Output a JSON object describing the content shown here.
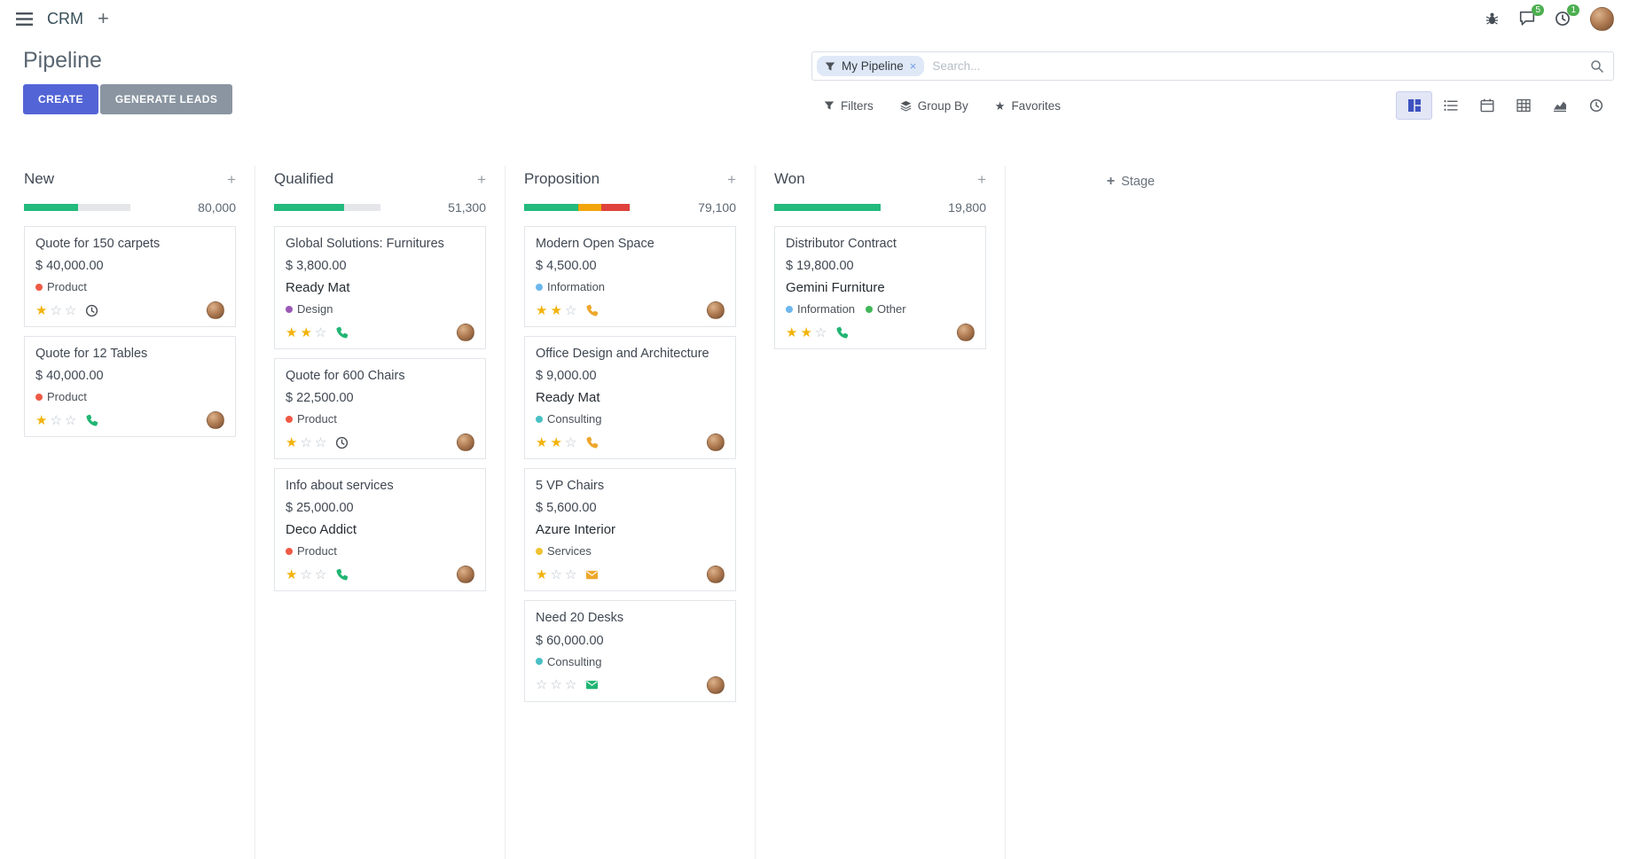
{
  "icons": {
    "plus": "+",
    "close": "×",
    "star": "★",
    "star_outline": "☆"
  },
  "colors": {
    "primary_button": "#5365d6",
    "secondary_button": "#8a95a1",
    "navbar_badge": "#4caf50",
    "star_filled": "#f2b30a",
    "star_empty": "#b9c2ca",
    "facet_background": "#dfe8f7",
    "progress_success": "#23ba7d",
    "progress_warning": "#f2a50c",
    "progress_danger": "#df423c",
    "progress_muted": "#e4e6e9"
  },
  "navbar": {
    "app_name": "CRM",
    "messages_badge": "5",
    "activities_badge": "1"
  },
  "control_panel": {
    "title": "Pipeline",
    "create_label": "CREATE",
    "generate_leads_label": "GENERATE LEADS",
    "search": {
      "facet_label": "My Pipeline",
      "placeholder": "Search..."
    },
    "filters_label": "Filters",
    "group_by_label": "Group By",
    "favorites_label": "Favorites"
  },
  "view_switcher": {
    "items": [
      {
        "icon": "kanban-icon",
        "active": true
      },
      {
        "icon": "list-icon",
        "active": false
      },
      {
        "icon": "calendar-icon",
        "active": false
      },
      {
        "icon": "pivot-icon",
        "active": false
      },
      {
        "icon": "graph-icon",
        "active": false
      },
      {
        "icon": "activity-icon",
        "active": false
      }
    ]
  },
  "board": {
    "add_stage_label": "Stage",
    "columns": [
      {
        "name": "New",
        "counter": "80,000",
        "progress": [
          {
            "color": "#23ba7d",
            "pct": 51
          },
          {
            "color": "#e4e6e9",
            "pct": 49
          }
        ],
        "cards": [
          {
            "title": "Quote for 150 carpets",
            "amount": "$ 40,000.00",
            "partner": "",
            "tags": [
              {
                "label": "Product",
                "color": "#ef5a46"
              }
            ],
            "stars": 1,
            "activity": {
              "type": "clock",
              "color": "#4a5056"
            }
          },
          {
            "title": "Quote for 12 Tables",
            "amount": "$ 40,000.00",
            "partner": "",
            "tags": [
              {
                "label": "Product",
                "color": "#ef5a46"
              }
            ],
            "stars": 1,
            "activity": {
              "type": "phone",
              "color": "#21b573"
            }
          }
        ]
      },
      {
        "name": "Qualified",
        "counter": "51,300",
        "progress": [
          {
            "color": "#23ba7d",
            "pct": 66
          },
          {
            "color": "#e4e6e9",
            "pct": 34
          }
        ],
        "cards": [
          {
            "title": "Global Solutions: Furnitures",
            "amount": "$ 3,800.00",
            "partner": "Ready Mat",
            "tags": [
              {
                "label": "Design",
                "color": "#9b59b6"
              }
            ],
            "stars": 2,
            "activity": {
              "type": "phone",
              "color": "#21b573"
            }
          },
          {
            "title": "Quote for 600 Chairs",
            "amount": "$ 22,500.00",
            "partner": "",
            "tags": [
              {
                "label": "Product",
                "color": "#ef5a46"
              }
            ],
            "stars": 1,
            "activity": {
              "type": "clock",
              "color": "#4a5056"
            }
          },
          {
            "title": "Info about services",
            "amount": "$ 25,000.00",
            "partner": "Deco Addict",
            "tags": [
              {
                "label": "Product",
                "color": "#ef5a46"
              }
            ],
            "stars": 1,
            "activity": {
              "type": "phone",
              "color": "#21b573"
            }
          }
        ]
      },
      {
        "name": "Proposition",
        "counter": "79,100",
        "progress": [
          {
            "color": "#23ba7d",
            "pct": 51
          },
          {
            "color": "#f2a50c",
            "pct": 22
          },
          {
            "color": "#df423c",
            "pct": 27
          }
        ],
        "cards": [
          {
            "title": "Modern Open Space",
            "amount": "$ 4,500.00",
            "partner": "",
            "tags": [
              {
                "label": "Information",
                "color": "#6db7ee"
              }
            ],
            "stars": 2,
            "activity": {
              "type": "phone",
              "color": "#eda72c"
            }
          },
          {
            "title": "Office Design and Architecture",
            "amount": "$ 9,000.00",
            "partner": "Ready Mat",
            "tags": [
              {
                "label": "Consulting",
                "color": "#49c0c4"
              }
            ],
            "stars": 2,
            "activity": {
              "type": "phone",
              "color": "#eda72c"
            }
          },
          {
            "title": "5 VP Chairs",
            "amount": "$ 5,600.00",
            "partner": "Azure Interior",
            "tags": [
              {
                "label": "Services",
                "color": "#f1c232"
              }
            ],
            "stars": 1,
            "activity": {
              "type": "envelope",
              "color": "#eda72c"
            }
          },
          {
            "title": "Need 20 Desks",
            "amount": "$ 60,000.00",
            "partner": "",
            "tags": [
              {
                "label": "Consulting",
                "color": "#49c0c4"
              }
            ],
            "stars": 0,
            "activity": {
              "type": "envelope",
              "color": "#21b573"
            }
          }
        ]
      },
      {
        "name": "Won",
        "counter": "19,800",
        "progress": [
          {
            "color": "#23ba7d",
            "pct": 100
          }
        ],
        "cards": [
          {
            "title": "Distributor Contract",
            "amount": "$ 19,800.00",
            "partner": "Gemini Furniture",
            "tags": [
              {
                "label": "Information",
                "color": "#6db7ee"
              },
              {
                "label": "Other",
                "color": "#41b658"
              }
            ],
            "stars": 2,
            "activity": {
              "type": "phone",
              "color": "#21b573"
            }
          }
        ]
      }
    ]
  }
}
